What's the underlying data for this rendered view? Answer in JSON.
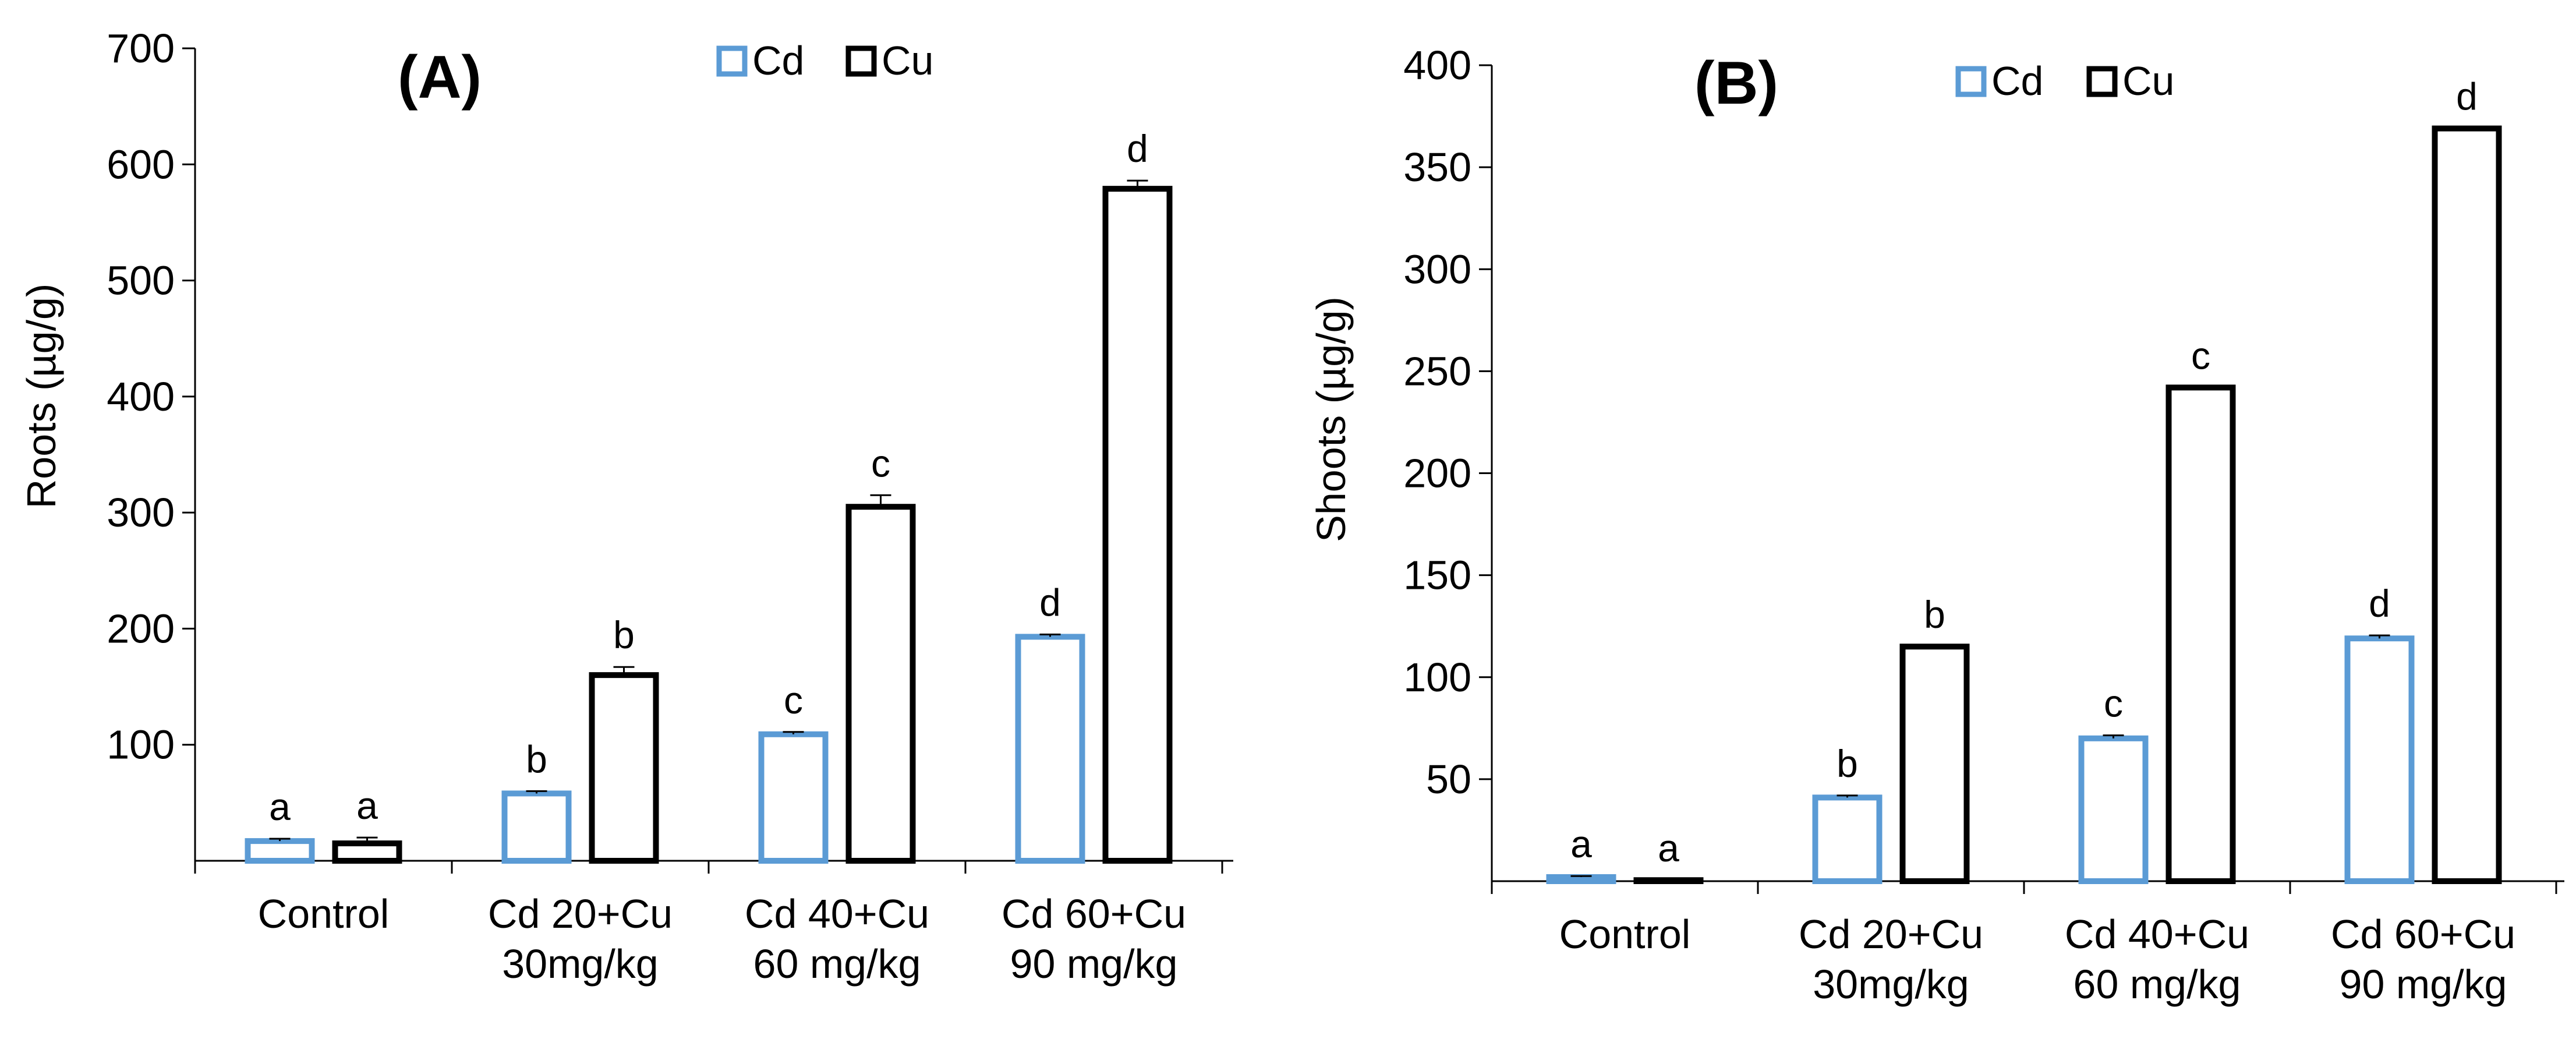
{
  "colors": {
    "cd": "#5b9bd5",
    "cu": "#000000",
    "axis": "#000000"
  },
  "legend": {
    "cd_label": "Cd",
    "cu_label": "Cu"
  },
  "chart_data": [
    {
      "type": "bar",
      "title": "(A)",
      "ylabel": "Roots (µg/g)",
      "xlabel": "",
      "ylim": [
        0,
        700
      ],
      "yticks": [
        100,
        200,
        300,
        400,
        500,
        600,
        700
      ],
      "categories": [
        [
          "Control"
        ],
        [
          "Cd 20+Cu",
          "30mg/kg"
        ],
        [
          "Cd 40+Cu",
          "60 mg/kg"
        ],
        [
          "Cd 60+Cu",
          "90 mg/kg"
        ]
      ],
      "series": [
        {
          "name": "Cd",
          "values": [
            17,
            58,
            109,
            193
          ],
          "errors": [
            2,
            2,
            2,
            2
          ],
          "labels": [
            "a",
            "b",
            "c",
            "d"
          ]
        },
        {
          "name": "Cu",
          "values": [
            15,
            160,
            305,
            579
          ],
          "errors": [
            5,
            7,
            10,
            7
          ],
          "labels": [
            "a",
            "b",
            "c",
            "d"
          ]
        }
      ]
    },
    {
      "type": "bar",
      "title": "(B)",
      "ylabel": "Shoots (µg/g)",
      "xlabel": "",
      "ylim": [
        0,
        400
      ],
      "yticks": [
        50,
        100,
        150,
        200,
        250,
        300,
        350,
        400
      ],
      "categories": [
        [
          "Control"
        ],
        [
          "Cd 20+Cu",
          "30mg/kg"
        ],
        [
          "Cd 40+Cu",
          "60 mg/kg"
        ],
        [
          "Cd 60+Cu",
          "90 mg/kg"
        ]
      ],
      "series": [
        {
          "name": "Cd",
          "values": [
            2,
            41,
            70,
            119
          ],
          "errors": [
            0.5,
            1,
            1.5,
            1.5
          ],
          "labels": [
            "a",
            "b",
            "c",
            "d"
          ]
        },
        {
          "name": "Cu",
          "values": [
            0.5,
            115,
            242,
            369
          ],
          "errors": [
            0,
            0,
            0,
            0
          ],
          "labels": [
            "a",
            "b",
            "c",
            "d"
          ]
        }
      ]
    }
  ]
}
